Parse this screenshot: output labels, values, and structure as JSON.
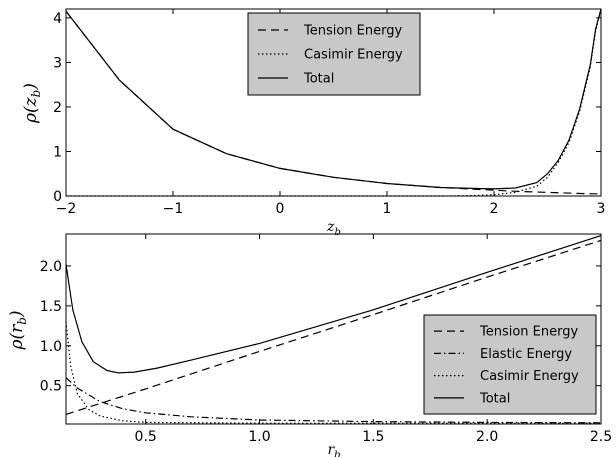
{
  "chart_data": [
    {
      "type": "line",
      "xlabel": "z_b",
      "ylabel": "ρ(z_b)",
      "xlim": [
        -2,
        3
      ],
      "ylim": [
        0,
        4.2
      ],
      "xticks": [
        "−2",
        "−1",
        "0",
        "1",
        "2",
        "3"
      ],
      "yticks": [
        "0",
        "1",
        "2",
        "3",
        "4"
      ],
      "grid": false,
      "legend_position": "top-center",
      "series": [
        {
          "name": "Tension Energy",
          "style": "dashed",
          "x": [
            -2.0,
            -1.5,
            -1.0,
            -0.5,
            0.0,
            0.5,
            1.0,
            1.5,
            2.0,
            2.25,
            2.5,
            2.75,
            2.9,
            3.0
          ],
          "y": [
            4.15,
            2.6,
            1.5,
            0.95,
            0.62,
            0.42,
            0.28,
            0.19,
            0.13,
            0.1,
            0.08,
            0.06,
            0.05,
            0.05
          ]
        },
        {
          "name": "Casimir Energy",
          "style": "dotted",
          "x": [
            -2.0,
            0.0,
            1.0,
            1.5,
            1.8,
            2.0,
            2.2,
            2.4,
            2.5,
            2.6,
            2.7,
            2.8,
            2.9,
            2.95,
            3.0
          ],
          "y": [
            0.0,
            0.0,
            0.0,
            0.0,
            0.01,
            0.03,
            0.08,
            0.22,
            0.42,
            0.75,
            1.2,
            1.9,
            2.9,
            3.7,
            4.2
          ]
        },
        {
          "name": "Total",
          "style": "solid",
          "x": [
            -2.0,
            -1.5,
            -1.0,
            -0.5,
            0.0,
            0.5,
            1.0,
            1.5,
            1.8,
            2.0,
            2.2,
            2.4,
            2.5,
            2.6,
            2.7,
            2.8,
            2.9,
            2.95,
            3.0
          ],
          "y": [
            4.15,
            2.6,
            1.5,
            0.95,
            0.62,
            0.42,
            0.28,
            0.19,
            0.17,
            0.16,
            0.18,
            0.3,
            0.5,
            0.8,
            1.25,
            1.95,
            2.95,
            3.75,
            4.2
          ]
        }
      ]
    },
    {
      "type": "line",
      "xlabel": "r_b",
      "ylabel": "ρ(r_b)",
      "xlim": [
        0.15,
        2.5
      ],
      "ylim": [
        0.02,
        2.4
      ],
      "xticks": [
        "0.5",
        "1.0",
        "1.5",
        "2.0",
        "2.5"
      ],
      "yticks": [
        "0.5",
        "1.0",
        "1.5",
        "2.0"
      ],
      "grid": false,
      "legend_position": "bottom-right",
      "series": [
        {
          "name": "Tension Energy",
          "style": "dashed",
          "x": [
            0.15,
            0.5,
            1.0,
            1.5,
            2.0,
            2.5
          ],
          "y": [
            0.14,
            0.46,
            0.93,
            1.39,
            1.86,
            2.32
          ]
        },
        {
          "name": "Elastic Energy",
          "style": "dashdot",
          "x": [
            0.15,
            0.2,
            0.3,
            0.4,
            0.5,
            0.7,
            1.0,
            1.5,
            2.0,
            2.5
          ],
          "y": [
            0.6,
            0.47,
            0.3,
            0.21,
            0.16,
            0.11,
            0.07,
            0.05,
            0.04,
            0.035
          ]
        },
        {
          "name": "Casimir Energy",
          "style": "dotted",
          "x": [
            0.15,
            0.17,
            0.2,
            0.25,
            0.3,
            0.4,
            0.5,
            1.0,
            1.5,
            2.0,
            2.5
          ],
          "y": [
            1.3,
            0.75,
            0.4,
            0.2,
            0.12,
            0.06,
            0.04,
            0.03,
            0.03,
            0.03,
            0.03
          ]
        },
        {
          "name": "Total",
          "style": "solid",
          "x": [
            0.15,
            0.18,
            0.22,
            0.27,
            0.33,
            0.38,
            0.45,
            0.55,
            0.7,
            1.0,
            1.5,
            2.0,
            2.5
          ],
          "y": [
            2.02,
            1.45,
            1.05,
            0.8,
            0.69,
            0.66,
            0.67,
            0.72,
            0.82,
            1.03,
            1.45,
            1.92,
            2.38
          ]
        }
      ]
    }
  ]
}
